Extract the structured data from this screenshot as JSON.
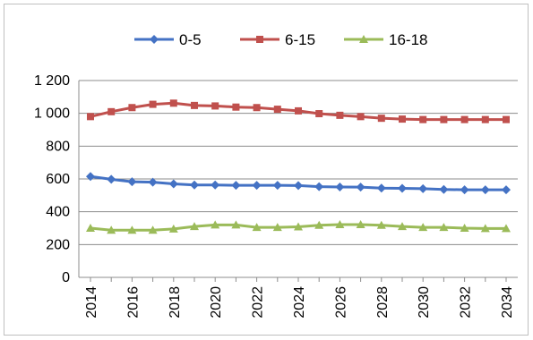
{
  "chart_data": {
    "type": "line",
    "x": [
      2014,
      2015,
      2016,
      2017,
      2018,
      2019,
      2020,
      2021,
      2022,
      2023,
      2024,
      2025,
      2026,
      2027,
      2028,
      2029,
      2030,
      2031,
      2032,
      2033,
      2034
    ],
    "x_tick_labels": [
      "2014",
      "2016",
      "2018",
      "2020",
      "2022",
      "2024",
      "2026",
      "2028",
      "2030",
      "2032",
      "2034"
    ],
    "y_tick_labels": [
      "0",
      "200",
      "400",
      "600",
      "800",
      "1 000",
      "1 200"
    ],
    "ylim": [
      0,
      1200
    ],
    "grid": "horizontal",
    "legend_position": "top",
    "series": [
      {
        "name": "0-5",
        "color": "#4472C4",
        "marker": "diamond",
        "values": [
          615,
          598,
          583,
          580,
          570,
          563,
          563,
          561,
          561,
          561,
          560,
          553,
          551,
          550,
          544,
          543,
          541,
          536,
          534,
          534,
          534
        ]
      },
      {
        "name": "6-15",
        "color": "#C0504D",
        "marker": "square",
        "values": [
          980,
          1010,
          1035,
          1055,
          1062,
          1048,
          1045,
          1038,
          1035,
          1025,
          1015,
          998,
          988,
          980,
          970,
          965,
          962,
          962,
          962,
          962,
          962
        ]
      },
      {
        "name": "16-18",
        "color": "#9BBB59",
        "marker": "triangle",
        "values": [
          300,
          288,
          288,
          288,
          295,
          310,
          320,
          320,
          305,
          305,
          308,
          318,
          322,
          322,
          318,
          310,
          305,
          305,
          300,
          298,
          298
        ]
      }
    ]
  }
}
